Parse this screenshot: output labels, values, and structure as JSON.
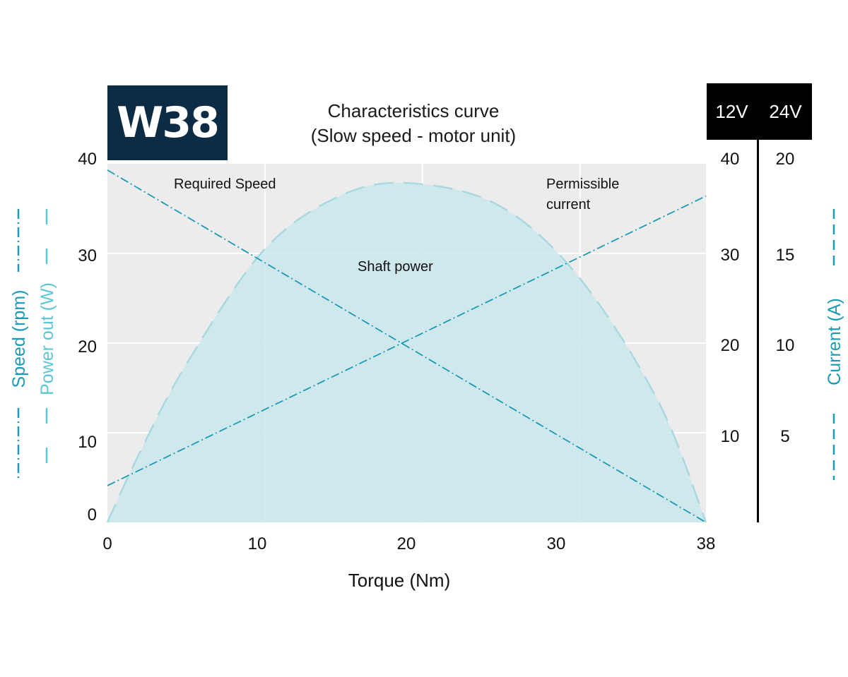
{
  "badge": "W38",
  "title_line1": "Characteristics curve",
  "title_line2": "(Slow speed - motor unit)",
  "volt_12": "12V",
  "volt_24": "24V",
  "colors": {
    "badge_bg": "#0c2b45",
    "line": "#1a9ab8",
    "fill": "#c9e7ec",
    "plot_bg": "#ececec"
  },
  "chart_data": {
    "type": "line",
    "xlabel": "Torque (Nm)",
    "xlim": [
      0,
      38
    ],
    "x_ticks": [
      "0",
      "10",
      "20",
      "30",
      "38"
    ],
    "y_left_ticks": [
      "0",
      "10",
      "20",
      "30",
      "40"
    ],
    "ylim_left": [
      0,
      40
    ],
    "ylabel_left_speed": "Speed (rpm)",
    "ylabel_left_power": "Power out (W)",
    "y_right_12v_ticks": [
      "10",
      "20",
      "30",
      "40"
    ],
    "y_right_24v_ticks": [
      "5",
      "10",
      "15",
      "20"
    ],
    "ylabel_right": "Current (A)",
    "grid": true,
    "series": [
      {
        "name": "Required Speed",
        "style": "dash-dot",
        "x": [
          0,
          38
        ],
        "y": [
          39.3,
          0
        ]
      },
      {
        "name": "Permissible current",
        "style": "dash-dot",
        "x": [
          0,
          38
        ],
        "y": [
          4.1,
          36.4
        ]
      },
      {
        "name": "Shaft power",
        "style": "dashed-filled",
        "x": [
          0,
          2,
          5,
          10,
          15,
          19.5,
          25,
          30,
          35,
          38
        ],
        "y": [
          0,
          7.6,
          17.6,
          30.5,
          36.6,
          37.8,
          35.2,
          27.2,
          13.4,
          0
        ]
      }
    ],
    "annotations": [
      "Required Speed",
      "Permissible",
      "current",
      "Shaft power"
    ]
  }
}
